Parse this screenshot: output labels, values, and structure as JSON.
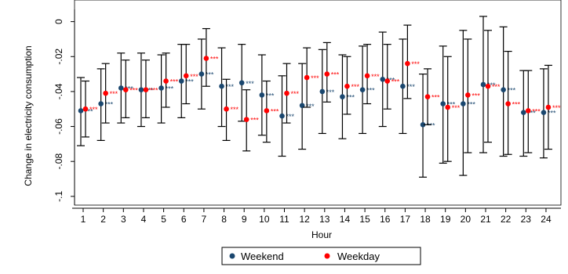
{
  "chart_data": {
    "type": "scatter",
    "title": "",
    "xlabel": "Hour",
    "ylabel": "Change in electricity consumption",
    "x_ticks": [
      "1",
      "2",
      "3",
      "4",
      "5",
      "6",
      "7",
      "8",
      "9",
      "10",
      "11",
      "12",
      "13",
      "14",
      "15",
      "16",
      "17",
      "18",
      "19",
      "20",
      "21",
      "22",
      "23",
      "24"
    ],
    "y_ticks": [
      "0",
      "-.02",
      "-.04",
      "-.06",
      "-.08",
      "-.1"
    ],
    "ylim": [
      -0.105,
      0.007
    ],
    "grid": false,
    "legend_position": "bottom",
    "significance_marker": "***",
    "series": [
      {
        "name": "Weekend",
        "color": "#1a476f",
        "values": [
          -0.051,
          -0.047,
          -0.038,
          -0.039,
          -0.038,
          -0.034,
          -0.03,
          -0.037,
          -0.035,
          -0.042,
          -0.054,
          -0.048,
          -0.04,
          -0.043,
          -0.039,
          -0.033,
          -0.037,
          -0.059,
          -0.047,
          -0.047,
          -0.036,
          -0.039,
          -0.052,
          -0.052
        ],
        "ci_low": [
          -0.071,
          -0.068,
          -0.058,
          -0.06,
          -0.058,
          -0.055,
          -0.05,
          -0.06,
          -0.057,
          -0.065,
          -0.077,
          -0.073,
          -0.064,
          -0.067,
          -0.064,
          -0.06,
          -0.064,
          -0.089,
          -0.081,
          -0.088,
          -0.075,
          -0.077,
          -0.077,
          -0.078
        ],
        "ci_high": [
          -0.032,
          -0.027,
          -0.018,
          -0.018,
          -0.019,
          -0.013,
          -0.01,
          -0.015,
          -0.013,
          -0.019,
          -0.031,
          -0.024,
          -0.016,
          -0.019,
          -0.014,
          -0.006,
          -0.01,
          -0.03,
          -0.014,
          -0.005,
          0.003,
          -0.003,
          -0.028,
          -0.027
        ]
      },
      {
        "name": "Weekday",
        "color": "#ff0000",
        "values": [
          -0.05,
          -0.041,
          -0.039,
          -0.039,
          -0.034,
          -0.031,
          -0.021,
          -0.05,
          -0.056,
          -0.051,
          -0.041,
          -0.032,
          -0.03,
          -0.037,
          -0.031,
          -0.034,
          -0.024,
          -0.043,
          -0.049,
          -0.042,
          -0.037,
          -0.047,
          -0.051,
          -0.049
        ],
        "ci_low": [
          -0.066,
          -0.058,
          -0.055,
          -0.055,
          -0.049,
          -0.047,
          -0.037,
          -0.068,
          -0.074,
          -0.069,
          -0.058,
          -0.049,
          -0.046,
          -0.053,
          -0.047,
          -0.05,
          -0.044,
          -0.059,
          -0.08,
          -0.075,
          -0.069,
          -0.076,
          -0.075,
          -0.073
        ],
        "ci_high": [
          -0.034,
          -0.024,
          -0.022,
          -0.022,
          -0.018,
          -0.013,
          -0.004,
          -0.033,
          -0.039,
          -0.034,
          -0.024,
          -0.015,
          -0.012,
          -0.02,
          -0.013,
          -0.013,
          -0.002,
          -0.027,
          -0.02,
          -0.01,
          -0.005,
          -0.017,
          -0.028,
          -0.025
        ]
      }
    ]
  }
}
